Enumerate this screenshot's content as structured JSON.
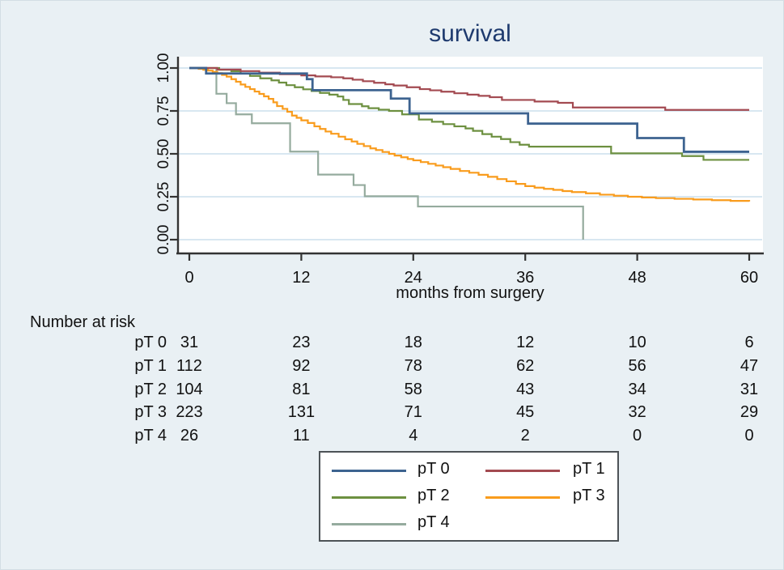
{
  "figure": {
    "title": "survival",
    "background_color": "#e9f0f4",
    "plot_background": "#ffffff",
    "gridline_color": "#d8e7f1",
    "axis_color": "#333333",
    "title_color": "#1e3a6e",
    "x_axis": {
      "label": "months from surgery",
      "ticks": [
        "0",
        "12",
        "24",
        "36",
        "48",
        "60"
      ]
    },
    "y_axis": {
      "ticks": [
        "0.00",
        "0.25",
        "0.50",
        "0.75",
        "1.00"
      ]
    }
  },
  "chart_data": {
    "type": "line",
    "subtype": "kaplan-meier-step",
    "title": "survival",
    "xlabel": "months from surgery",
    "ylabel": "",
    "xlim": [
      0,
      60
    ],
    "ylim": [
      0,
      1
    ],
    "x_ticks": [
      0,
      12,
      24,
      36,
      48,
      60
    ],
    "y_ticks": [
      0,
      0.25,
      0.5,
      0.75,
      1
    ],
    "y_tick_labels": [
      "0.00",
      "0.25",
      "0.50",
      "0.75",
      "1.00"
    ],
    "grid": "horizontal",
    "legend_position": "bottom-center",
    "series": [
      {
        "name": "pT 0",
        "color": "#3d6390",
        "stroke_width": 2.8,
        "points": [
          [
            0,
            1.0
          ],
          [
            1.8,
            0.968
          ],
          [
            12.6,
            0.935
          ],
          [
            13.2,
            0.871
          ],
          [
            21.6,
            0.822
          ],
          [
            23.6,
            0.736
          ],
          [
            36.3,
            0.676
          ],
          [
            48.0,
            0.592
          ],
          [
            53.0,
            0.512
          ],
          [
            60,
            0.512
          ]
        ]
      },
      {
        "name": "pT 1",
        "color": "#a34a51",
        "stroke_width": 2.2,
        "points": [
          [
            0,
            1.0
          ],
          [
            3.0,
            0.991
          ],
          [
            5.5,
            0.982
          ],
          [
            7.5,
            0.973
          ],
          [
            9.7,
            0.964
          ],
          [
            12.0,
            0.957
          ],
          [
            13.5,
            0.951
          ],
          [
            15.2,
            0.946
          ],
          [
            16.5,
            0.94
          ],
          [
            17.5,
            0.932
          ],
          [
            18.6,
            0.923
          ],
          [
            19.8,
            0.914
          ],
          [
            21.0,
            0.905
          ],
          [
            21.9,
            0.898
          ],
          [
            23.3,
            0.888
          ],
          [
            24.7,
            0.877
          ],
          [
            25.8,
            0.87
          ],
          [
            27.0,
            0.862
          ],
          [
            28.4,
            0.853
          ],
          [
            29.8,
            0.845
          ],
          [
            31.0,
            0.838
          ],
          [
            32.2,
            0.83
          ],
          [
            33.5,
            0.814
          ],
          [
            37.0,
            0.805
          ],
          [
            39.5,
            0.797
          ],
          [
            41.1,
            0.77
          ],
          [
            51.0,
            0.756
          ],
          [
            60,
            0.756
          ]
        ]
      },
      {
        "name": "pT 2",
        "color": "#6d9040",
        "stroke_width": 2.2,
        "points": [
          [
            0,
            1.0
          ],
          [
            3.2,
            0.99
          ],
          [
            4.5,
            0.981
          ],
          [
            5.5,
            0.968
          ],
          [
            6.5,
            0.954
          ],
          [
            7.6,
            0.94
          ],
          [
            8.8,
            0.928
          ],
          [
            9.6,
            0.915
          ],
          [
            10.4,
            0.9
          ],
          [
            11.3,
            0.888
          ],
          [
            12.2,
            0.876
          ],
          [
            13.1,
            0.866
          ],
          [
            14.0,
            0.855
          ],
          [
            15.0,
            0.845
          ],
          [
            15.9,
            0.834
          ],
          [
            16.5,
            0.814
          ],
          [
            17.1,
            0.79
          ],
          [
            18.5,
            0.777
          ],
          [
            19.2,
            0.766
          ],
          [
            20.3,
            0.757
          ],
          [
            21.4,
            0.75
          ],
          [
            22.8,
            0.73
          ],
          [
            24.6,
            0.7
          ],
          [
            26.0,
            0.687
          ],
          [
            27.2,
            0.673
          ],
          [
            28.4,
            0.66
          ],
          [
            29.6,
            0.648
          ],
          [
            30.4,
            0.634
          ],
          [
            31.4,
            0.615
          ],
          [
            32.4,
            0.6
          ],
          [
            33.4,
            0.586
          ],
          [
            34.4,
            0.568
          ],
          [
            35.4,
            0.553
          ],
          [
            36.4,
            0.542
          ],
          [
            45.2,
            0.503
          ],
          [
            52.8,
            0.487
          ],
          [
            55.1,
            0.465
          ],
          [
            60,
            0.465
          ]
        ]
      },
      {
        "name": "pT 3",
        "color": "#f99c1d",
        "stroke_width": 2.2,
        "points": [
          [
            0,
            1.0
          ],
          [
            1.0,
            0.995
          ],
          [
            1.5,
            0.99
          ],
          [
            2.0,
            0.985
          ],
          [
            2.5,
            0.978
          ],
          [
            3.0,
            0.97
          ],
          [
            3.5,
            0.96
          ],
          [
            4.0,
            0.95
          ],
          [
            4.5,
            0.935
          ],
          [
            5.0,
            0.92
          ],
          [
            5.5,
            0.904
          ],
          [
            6.0,
            0.89
          ],
          [
            6.5,
            0.877
          ],
          [
            7.0,
            0.863
          ],
          [
            7.5,
            0.849
          ],
          [
            8.0,
            0.835
          ],
          [
            8.5,
            0.82
          ],
          [
            9.0,
            0.8
          ],
          [
            9.4,
            0.778
          ],
          [
            10.0,
            0.762
          ],
          [
            10.5,
            0.745
          ],
          [
            11.0,
            0.723
          ],
          [
            11.5,
            0.71
          ],
          [
            12.0,
            0.695
          ],
          [
            12.7,
            0.68
          ],
          [
            13.4,
            0.66
          ],
          [
            14.0,
            0.645
          ],
          [
            14.6,
            0.63
          ],
          [
            15.2,
            0.617
          ],
          [
            16.0,
            0.6
          ],
          [
            16.7,
            0.585
          ],
          [
            17.4,
            0.572
          ],
          [
            18.0,
            0.558
          ],
          [
            18.7,
            0.545
          ],
          [
            19.4,
            0.532
          ],
          [
            20.0,
            0.522
          ],
          [
            20.7,
            0.511
          ],
          [
            21.4,
            0.5
          ],
          [
            22.0,
            0.49
          ],
          [
            22.7,
            0.48
          ],
          [
            23.4,
            0.47
          ],
          [
            24.0,
            0.462
          ],
          [
            24.8,
            0.452
          ],
          [
            25.6,
            0.442
          ],
          [
            26.4,
            0.432
          ],
          [
            27.2,
            0.422
          ],
          [
            28.0,
            0.412
          ],
          [
            29.0,
            0.4
          ],
          [
            30.0,
            0.39
          ],
          [
            31.0,
            0.378
          ],
          [
            32.0,
            0.366
          ],
          [
            33.0,
            0.353
          ],
          [
            34.0,
            0.34
          ],
          [
            35.0,
            0.325
          ],
          [
            36.0,
            0.312
          ],
          [
            37.0,
            0.303
          ],
          [
            38.0,
            0.296
          ],
          [
            39.0,
            0.29
          ],
          [
            40.0,
            0.283
          ],
          [
            41.0,
            0.277
          ],
          [
            42.5,
            0.27
          ],
          [
            44.0,
            0.262
          ],
          [
            45.5,
            0.256
          ],
          [
            47.0,
            0.25
          ],
          [
            48.5,
            0.246
          ],
          [
            50.0,
            0.242
          ],
          [
            52.0,
            0.238
          ],
          [
            54.0,
            0.234
          ],
          [
            56.0,
            0.23
          ],
          [
            58.0,
            0.226
          ],
          [
            60.0,
            0.222
          ]
        ]
      },
      {
        "name": "pT 4",
        "color": "#95ab9e",
        "stroke_width": 2.2,
        "points": [
          [
            0,
            1.0
          ],
          [
            2.9,
            0.85
          ],
          [
            4.0,
            0.795
          ],
          [
            5.0,
            0.73
          ],
          [
            6.7,
            0.678
          ],
          [
            10.8,
            0.513
          ],
          [
            13.8,
            0.379
          ],
          [
            17.6,
            0.318
          ],
          [
            18.8,
            0.253
          ],
          [
            24.5,
            0.193
          ],
          [
            42.2,
            0.0
          ]
        ]
      }
    ]
  },
  "risk_table": {
    "header": "Number at risk",
    "time_points": [
      0,
      12,
      24,
      36,
      48,
      60
    ],
    "rows": [
      {
        "label": "pT 0",
        "counts": [
          "31",
          "23",
          "18",
          "12",
          "10",
          "6"
        ]
      },
      {
        "label": "pT 1",
        "counts": [
          "112",
          "92",
          "78",
          "62",
          "56",
          "47"
        ]
      },
      {
        "label": "pT 2",
        "counts": [
          "104",
          "81",
          "58",
          "43",
          "34",
          "31"
        ]
      },
      {
        "label": "pT 3",
        "counts": [
          "223",
          "131",
          "71",
          "45",
          "32",
          "29"
        ]
      },
      {
        "label": "pT 4",
        "counts": [
          "26",
          "11",
          "4",
          "2",
          "0",
          "0"
        ]
      }
    ]
  },
  "legend": {
    "items": [
      {
        "label": "pT 0",
        "color": "#3d6390"
      },
      {
        "label": "pT 1",
        "color": "#a34a51"
      },
      {
        "label": "pT 2",
        "color": "#6d9040"
      },
      {
        "label": "pT 3",
        "color": "#f99c1d"
      },
      {
        "label": "pT 4",
        "color": "#95ab9e"
      }
    ]
  }
}
